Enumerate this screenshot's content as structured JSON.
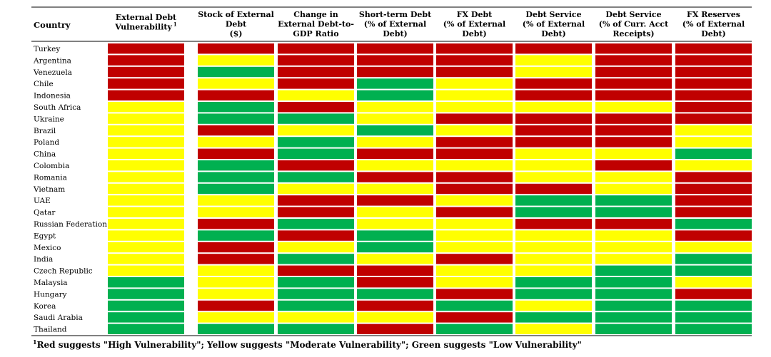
{
  "chart_data": {
    "type": "heatmap",
    "row_header": "Country",
    "columns": [
      {
        "lines": [
          "External Debt",
          "Vulnerability"
        ],
        "sup": "1"
      },
      {
        "lines": [
          "Stock of External",
          "Debt",
          "($)"
        ]
      },
      {
        "lines": [
          "Change in",
          "External Debt-to-",
          "GDP Ratio"
        ]
      },
      {
        "lines": [
          "Short-term Debt",
          "(% of External",
          "Debt)"
        ]
      },
      {
        "lines": [
          "FX Debt",
          "(% of External",
          "Debt)"
        ]
      },
      {
        "lines": [
          "Debt Service",
          "(% of External",
          "Debt)"
        ]
      },
      {
        "lines": [
          "Debt Service",
          "(% of Curr. Acct",
          "Receipts)"
        ]
      },
      {
        "lines": [
          "FX Reserves",
          "(% of External",
          "Debt)"
        ]
      }
    ],
    "rows": [
      {
        "country": "Turkey",
        "ratings": [
          "R",
          "R",
          "R",
          "R",
          "R",
          "R",
          "R",
          "R"
        ]
      },
      {
        "country": "Argentina",
        "ratings": [
          "R",
          "Y",
          "R",
          "R",
          "R",
          "Y",
          "R",
          "R"
        ]
      },
      {
        "country": "Venezuela",
        "ratings": [
          "R",
          "G",
          "R",
          "R",
          "R",
          "Y",
          "R",
          "R"
        ]
      },
      {
        "country": "Chile",
        "ratings": [
          "R",
          "Y",
          "R",
          "G",
          "Y",
          "R",
          "R",
          "R"
        ]
      },
      {
        "country": "Indonesia",
        "ratings": [
          "R",
          "R",
          "Y",
          "G",
          "Y",
          "R",
          "R",
          "R"
        ]
      },
      {
        "country": "South Africa",
        "ratings": [
          "Y",
          "G",
          "R",
          "Y",
          "Y",
          "Y",
          "Y",
          "R"
        ]
      },
      {
        "country": "Ukraine",
        "ratings": [
          "Y",
          "G",
          "G",
          "Y",
          "R",
          "R",
          "R",
          "R"
        ]
      },
      {
        "country": "Brazil",
        "ratings": [
          "Y",
          "R",
          "Y",
          "G",
          "Y",
          "R",
          "R",
          "Y"
        ]
      },
      {
        "country": "Poland",
        "ratings": [
          "Y",
          "Y",
          "G",
          "Y",
          "R",
          "R",
          "R",
          "Y"
        ]
      },
      {
        "country": "China",
        "ratings": [
          "Y",
          "R",
          "G",
          "R",
          "R",
          "Y",
          "Y",
          "G"
        ]
      },
      {
        "country": "Colombia",
        "ratings": [
          "Y",
          "G",
          "R",
          "Y",
          "Y",
          "Y",
          "R",
          "Y"
        ]
      },
      {
        "country": "Romania",
        "ratings": [
          "Y",
          "G",
          "G",
          "R",
          "R",
          "Y",
          "Y",
          "R"
        ]
      },
      {
        "country": "Vietnam",
        "ratings": [
          "Y",
          "G",
          "Y",
          "Y",
          "R",
          "R",
          "Y",
          "R"
        ]
      },
      {
        "country": "UAE",
        "ratings": [
          "Y",
          "Y",
          "R",
          "R",
          "Y",
          "G",
          "G",
          "R"
        ]
      },
      {
        "country": "Qatar",
        "ratings": [
          "Y",
          "Y",
          "R",
          "Y",
          "R",
          "G",
          "G",
          "R"
        ]
      },
      {
        "country": "Russian Federation",
        "ratings": [
          "Y",
          "R",
          "G",
          "Y",
          "Y",
          "R",
          "R",
          "G"
        ]
      },
      {
        "country": "Egypt",
        "ratings": [
          "Y",
          "G",
          "R",
          "G",
          "Y",
          "Y",
          "Y",
          "R"
        ]
      },
      {
        "country": "Mexico",
        "ratings": [
          "Y",
          "R",
          "Y",
          "G",
          "Y",
          "Y",
          "Y",
          "Y"
        ]
      },
      {
        "country": "India",
        "ratings": [
          "Y",
          "R",
          "G",
          "Y",
          "R",
          "Y",
          "Y",
          "G"
        ]
      },
      {
        "country": "Czech Republic",
        "ratings": [
          "Y",
          "Y",
          "R",
          "R",
          "Y",
          "Y",
          "G",
          "G"
        ]
      },
      {
        "country": "Malaysia",
        "ratings": [
          "G",
          "Y",
          "G",
          "R",
          "Y",
          "G",
          "G",
          "Y"
        ]
      },
      {
        "country": "Hungary",
        "ratings": [
          "G",
          "Y",
          "G",
          "G",
          "R",
          "G",
          "G",
          "R"
        ]
      },
      {
        "country": "Korea",
        "ratings": [
          "G",
          "R",
          "G",
          "R",
          "G",
          "Y",
          "G",
          "G"
        ]
      },
      {
        "country": "Saudi Arabia",
        "ratings": [
          "G",
          "Y",
          "Y",
          "Y",
          "R",
          "G",
          "G",
          "G"
        ]
      },
      {
        "country": "Thailand",
        "ratings": [
          "G",
          "G",
          "G",
          "R",
          "G",
          "Y",
          "G",
          "G"
        ]
      }
    ],
    "color_key": {
      "R": "#c00000",
      "Y": "#ffff00",
      "G": "#00b050"
    }
  },
  "footnote": {
    "sup": "1",
    "text": "Red suggests \"High Vulnerability\"; Yellow suggests \"Moderate Vulnerability\"; Green suggests \"Low Vulnerability\""
  }
}
